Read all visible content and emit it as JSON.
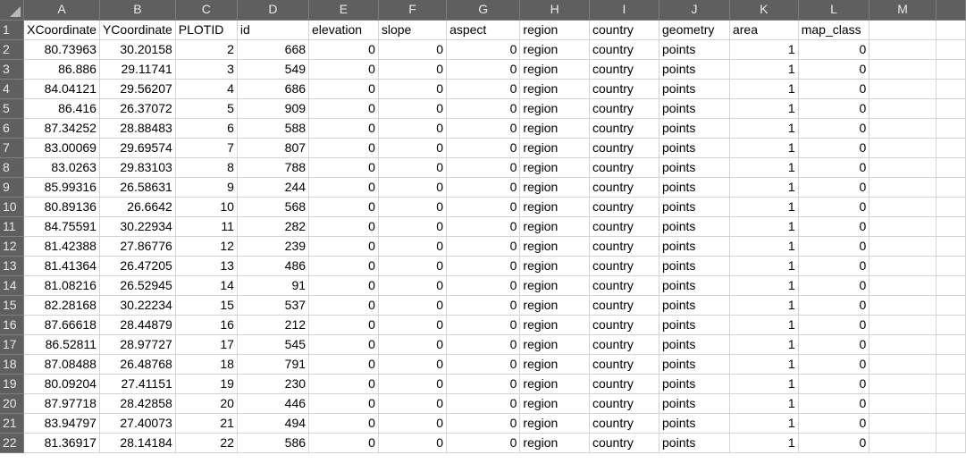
{
  "columns": [
    "A",
    "B",
    "C",
    "D",
    "E",
    "F",
    "G",
    "H",
    "I",
    "J",
    "K",
    "L",
    "M"
  ],
  "headers": [
    "XCoordinate",
    "YCoordinate",
    "PLOTID",
    "id",
    "elevation",
    "slope",
    "aspect",
    "region",
    "country",
    "geometry",
    "area",
    "map_class",
    ""
  ],
  "row_numbers": [
    "1",
    "2",
    "3",
    "4",
    "5",
    "6",
    "7",
    "8",
    "9",
    "10",
    "11",
    "12",
    "13",
    "14",
    "15",
    "16",
    "17",
    "18",
    "19",
    "20",
    "21",
    "22"
  ],
  "rows": [
    [
      "80.73963",
      "30.20158",
      "2",
      "668",
      "0",
      "0",
      "0",
      "region",
      "country",
      "points",
      "1",
      "0",
      ""
    ],
    [
      "86.886",
      "29.11741",
      "3",
      "549",
      "0",
      "0",
      "0",
      "region",
      "country",
      "points",
      "1",
      "0",
      ""
    ],
    [
      "84.04121",
      "29.56207",
      "4",
      "686",
      "0",
      "0",
      "0",
      "region",
      "country",
      "points",
      "1",
      "0",
      ""
    ],
    [
      "86.416",
      "26.37072",
      "5",
      "909",
      "0",
      "0",
      "0",
      "region",
      "country",
      "points",
      "1",
      "0",
      ""
    ],
    [
      "87.34252",
      "28.88483",
      "6",
      "588",
      "0",
      "0",
      "0",
      "region",
      "country",
      "points",
      "1",
      "0",
      ""
    ],
    [
      "83.00069",
      "29.69574",
      "7",
      "807",
      "0",
      "0",
      "0",
      "region",
      "country",
      "points",
      "1",
      "0",
      ""
    ],
    [
      "83.0263",
      "29.83103",
      "8",
      "788",
      "0",
      "0",
      "0",
      "region",
      "country",
      "points",
      "1",
      "0",
      ""
    ],
    [
      "85.99316",
      "26.58631",
      "9",
      "244",
      "0",
      "0",
      "0",
      "region",
      "country",
      "points",
      "1",
      "0",
      ""
    ],
    [
      "80.89136",
      "26.6642",
      "10",
      "568",
      "0",
      "0",
      "0",
      "region",
      "country",
      "points",
      "1",
      "0",
      ""
    ],
    [
      "84.75591",
      "30.22934",
      "11",
      "282",
      "0",
      "0",
      "0",
      "region",
      "country",
      "points",
      "1",
      "0",
      ""
    ],
    [
      "81.42388",
      "27.86776",
      "12",
      "239",
      "0",
      "0",
      "0",
      "region",
      "country",
      "points",
      "1",
      "0",
      ""
    ],
    [
      "81.41364",
      "26.47205",
      "13",
      "486",
      "0",
      "0",
      "0",
      "region",
      "country",
      "points",
      "1",
      "0",
      ""
    ],
    [
      "81.08216",
      "26.52945",
      "14",
      "91",
      "0",
      "0",
      "0",
      "region",
      "country",
      "points",
      "1",
      "0",
      ""
    ],
    [
      "82.28168",
      "30.22234",
      "15",
      "537",
      "0",
      "0",
      "0",
      "region",
      "country",
      "points",
      "1",
      "0",
      ""
    ],
    [
      "87.66618",
      "28.44879",
      "16",
      "212",
      "0",
      "0",
      "0",
      "region",
      "country",
      "points",
      "1",
      "0",
      ""
    ],
    [
      "86.52811",
      "28.97727",
      "17",
      "545",
      "0",
      "0",
      "0",
      "region",
      "country",
      "points",
      "1",
      "0",
      ""
    ],
    [
      "87.08488",
      "26.48768",
      "18",
      "791",
      "0",
      "0",
      "0",
      "region",
      "country",
      "points",
      "1",
      "0",
      ""
    ],
    [
      "80.09204",
      "27.41151",
      "19",
      "230",
      "0",
      "0",
      "0",
      "region",
      "country",
      "points",
      "1",
      "0",
      ""
    ],
    [
      "87.97718",
      "28.42858",
      "20",
      "446",
      "0",
      "0",
      "0",
      "region",
      "country",
      "points",
      "1",
      "0",
      ""
    ],
    [
      "83.94797",
      "27.40073",
      "21",
      "494",
      "0",
      "0",
      "0",
      "region",
      "country",
      "points",
      "1",
      "0",
      ""
    ],
    [
      "81.36917",
      "28.14184",
      "22",
      "586",
      "0",
      "0",
      "0",
      "region",
      "country",
      "points",
      "1",
      "0",
      ""
    ]
  ],
  "colors": {
    "header_bg": "#5f5f5f",
    "header_text": "#e9e9e9",
    "gridline": "#d4d4d4",
    "cell_bg": "#ffffff"
  }
}
